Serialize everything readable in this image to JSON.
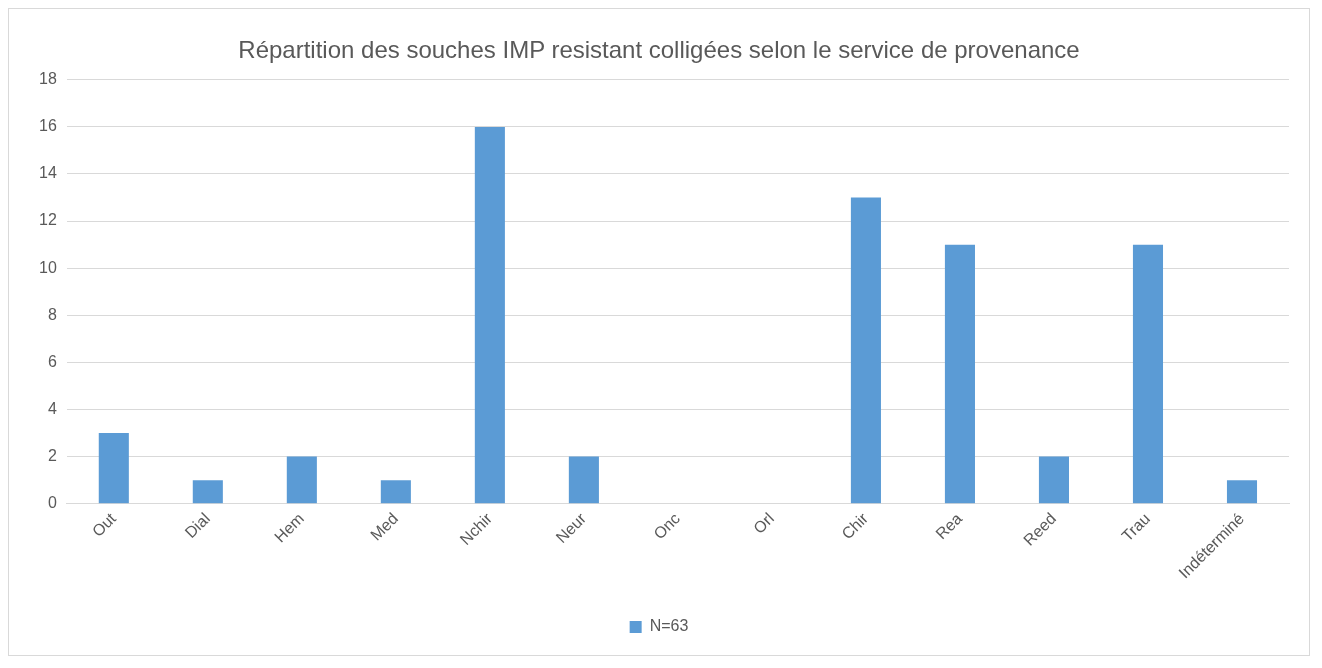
{
  "chart_data": {
    "type": "bar",
    "title": "Répartition des souches IMP resistant colligées selon le service de provenance",
    "categories": [
      "Out",
      "Dial",
      "Hem",
      "Med",
      "Nchir",
      "Neur",
      "Onc",
      "Orl",
      "Chir",
      "Rea",
      "Reed",
      "Trau",
      "Indéterminé"
    ],
    "series": [
      {
        "name": "N=63",
        "color": "#5b9bd5",
        "values": [
          3,
          1,
          2,
          1,
          16,
          2,
          0,
          0,
          13,
          11,
          2,
          11,
          1
        ]
      }
    ],
    "ylim": [
      0,
      18
    ],
    "yticks": [
      0,
      2,
      4,
      6,
      8,
      10,
      12,
      14,
      16,
      18
    ],
    "grid": "y",
    "legend": "bottom"
  }
}
